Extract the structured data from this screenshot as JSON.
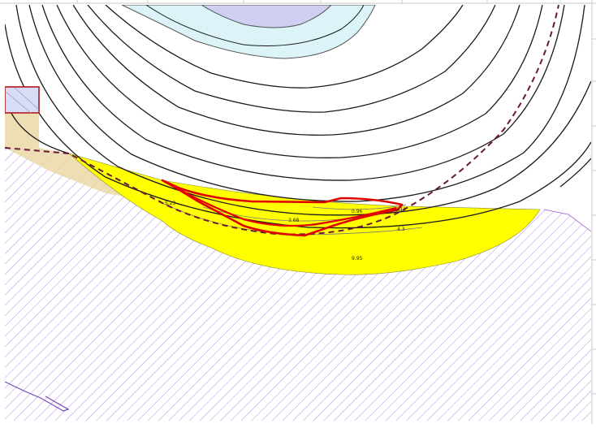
{
  "map": {
    "zone_labels": [
      {
        "id": "zone-label-1",
        "text": "5.23"
      },
      {
        "id": "zone-label-2",
        "text": "3.68"
      },
      {
        "id": "zone-label-3",
        "text": "0.96"
      },
      {
        "id": "zone-label-4",
        "text": "0.11"
      },
      {
        "id": "zone-label-5",
        "text": "4.3"
      },
      {
        "id": "zone-label-6",
        "text": "9.95"
      }
    ],
    "colors": {
      "background": "#ffffff",
      "contour_line": "#1a1a1a",
      "inner_zone_fill": "#dcf4f8",
      "core_zone_fill": "#cfcff2",
      "yellow_zone_fill": "#ffff00",
      "hatch_stroke": "#b08fe0",
      "hatch_border": "#b47ad6",
      "red_outline": "#e00000",
      "dashed_boundary": "#6a1838",
      "tan_area": "#ead9a6",
      "grid_tick": "#c8c8c8"
    }
  }
}
